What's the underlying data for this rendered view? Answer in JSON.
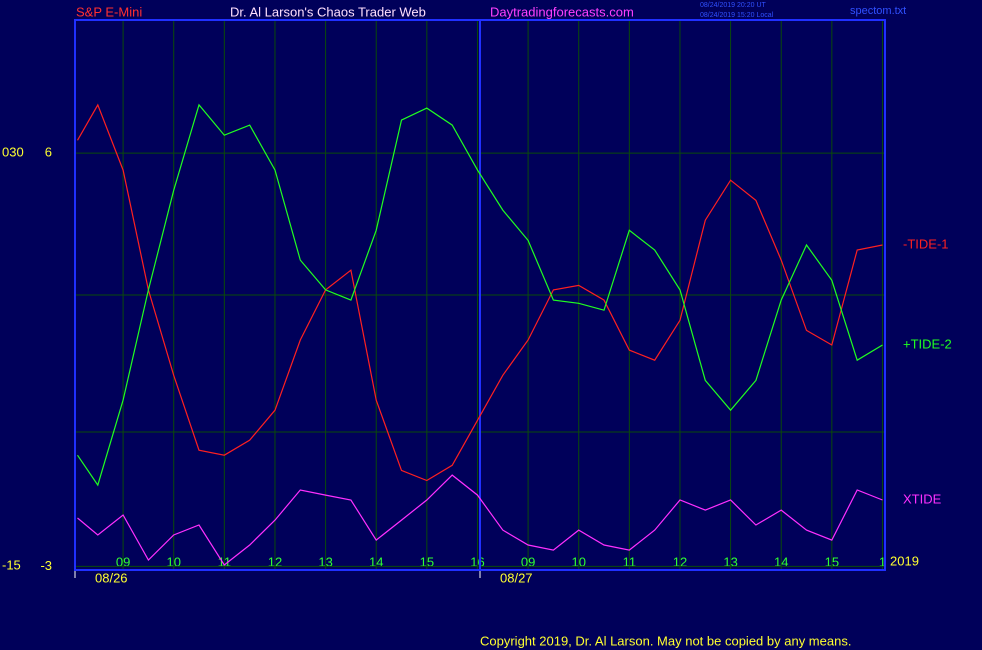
{
  "chart_data": {
    "type": "line",
    "title": "Dr. Al Larson's Chaos Trader Web",
    "symbol": "S&P E-Mini",
    "site": "Daytradingforecasts.com",
    "timestamps": [
      "08/24/2019 20:20 UT",
      "08/24/2019 15:20 Local"
    ],
    "file": "spectom.txt",
    "dates": [
      {
        "value": -0.95,
        "label": "08/26"
      },
      {
        "value": 7.05,
        "label": "08/27"
      }
    ],
    "year": "2019",
    "copyright": "Copyright 2019, Dr. Al Larson. May not be copied by any means.",
    "x": [
      -0.9,
      -0.5,
      0,
      0.5,
      1,
      1.5,
      2,
      2.5,
      3,
      3.5,
      4,
      4.5,
      5,
      5.5,
      6,
      6.5,
      7,
      7.5,
      8,
      8.5,
      9,
      9.5,
      10,
      10.5,
      11,
      11.5,
      12,
      12.5,
      13,
      13.5,
      14,
      14.5,
      15
    ],
    "xlim": [
      -0.95,
      15.05
    ],
    "xticks": [
      {
        "value": 0,
        "label": "09"
      },
      {
        "value": 1,
        "label": "10"
      },
      {
        "value": 2,
        "label": "11"
      },
      {
        "value": 3,
        "label": "12"
      },
      {
        "value": 4,
        "label": "13"
      },
      {
        "value": 5,
        "label": "14"
      },
      {
        "value": 6,
        "label": "15"
      },
      {
        "value": 7,
        "label": "16"
      },
      {
        "value": 8,
        "label": "09"
      },
      {
        "value": 9,
        "label": "10"
      },
      {
        "value": 10,
        "label": "11"
      },
      {
        "value": 11,
        "label": "12"
      },
      {
        "value": 12,
        "label": "13"
      },
      {
        "value": 13,
        "label": "14"
      },
      {
        "value": 14,
        "label": "15"
      },
      {
        "value": 15,
        "label": "1"
      }
    ],
    "ylim": [
      -3.08,
      8.9
    ],
    "yticks": [
      6,
      -3
    ],
    "y2lim": [
      -15.42,
      44.49
    ],
    "y2ticks": [
      {
        "value": 30,
        "label": "030"
      },
      -15
    ],
    "grid": true,
    "series": [
      {
        "name": "-TIDE-1",
        "color": "#ff2020",
        "values": [
          6.28,
          7.05,
          5.63,
          3.02,
          1.16,
          -0.47,
          -0.58,
          -0.25,
          0.4,
          1.93,
          3.02,
          3.45,
          0.62,
          -0.91,
          -1.13,
          -0.8,
          0.18,
          1.16,
          1.93,
          3.02,
          3.12,
          2.8,
          1.71,
          1.49,
          2.36,
          4.54,
          5.41,
          4.97,
          3.67,
          2.14,
          1.82,
          3.89,
          4.0
        ]
      },
      {
        "name": "+TIDE-2",
        "color": "#20ff20",
        "values": [
          -0.58,
          -1.23,
          0.62,
          3.02,
          5.19,
          7.05,
          6.39,
          6.61,
          5.63,
          3.67,
          3.02,
          2.8,
          4.32,
          6.72,
          6.98,
          6.61,
          5.63,
          4.76,
          4.1,
          2.8,
          2.73,
          2.58,
          4.32,
          3.89,
          3.02,
          1.05,
          0.4,
          1.05,
          2.8,
          4.0,
          3.23,
          1.49,
          1.82
        ]
      },
      {
        "name": "XTIDE",
        "color": "#ff30ff",
        "axis": "y2",
        "values": [
          -9.76,
          -11.61,
          -9.43,
          -14.33,
          -11.61,
          -10.52,
          -14.88,
          -12.7,
          -9.98,
          -6.71,
          -7.26,
          -7.8,
          -12.16,
          -9.98,
          -7.8,
          -5.08,
          -7.26,
          -11.07,
          -12.7,
          -13.25,
          -11.07,
          -12.7,
          -13.25,
          -11.07,
          -7.8,
          -8.89,
          -7.8,
          -10.52,
          -8.89,
          -11.07,
          -12.16,
          -6.71,
          -7.8
        ]
      }
    ]
  }
}
